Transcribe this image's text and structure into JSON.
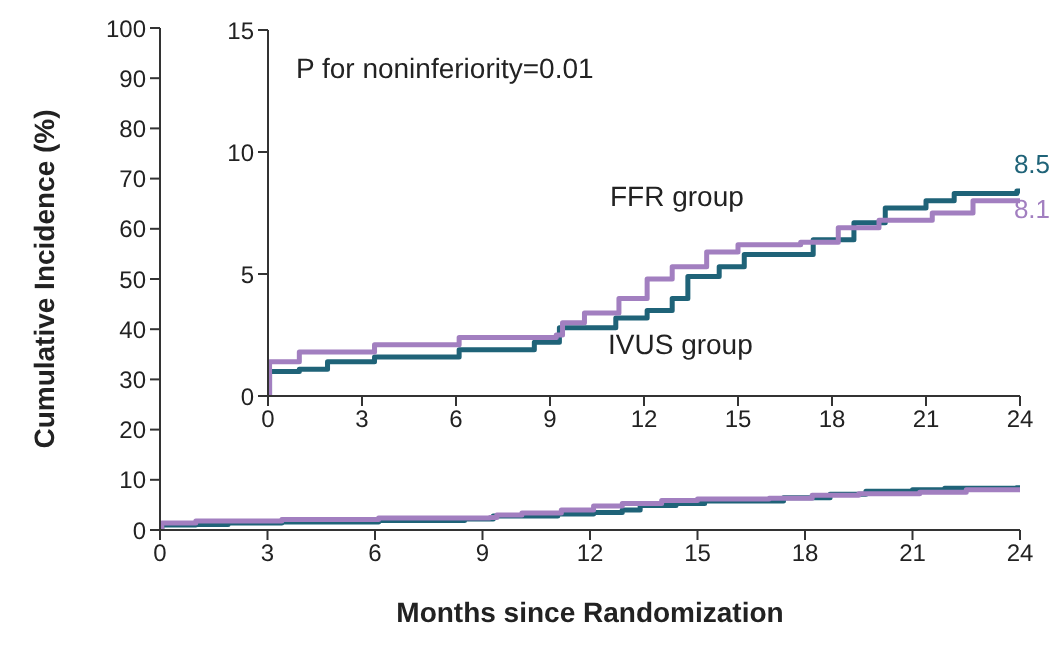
{
  "chart_data": [
    {
      "type": "step",
      "xlabel": "Months since Randomization",
      "ylabel": "Cumulative Incidence (%)",
      "xlim": [
        0,
        24
      ],
      "xticks": [
        0,
        3,
        6,
        9,
        12,
        15,
        18,
        21,
        24
      ],
      "ylim": [
        0,
        100
      ],
      "yticks": [
        0,
        10,
        20,
        30,
        40,
        50,
        60,
        70,
        80,
        90,
        100
      ],
      "series": [
        {
          "color": "#1f6378",
          "x": [
            0,
            0.05,
            1,
            1.9,
            3.4,
            6.1,
            8.5,
            9.3,
            11.1,
            12.1,
            12.9,
            13.4,
            14.4,
            15.2,
            16.6,
            17.4,
            18.7,
            19.7,
            21,
            21.9,
            23.9,
            24
          ],
          "values": [
            0,
            1.0,
            1.1,
            1.4,
            1.6,
            1.9,
            2.2,
            2.8,
            3.2,
            3.5,
            4.0,
            4.9,
            5.3,
            5.8,
            5.8,
            6.4,
            7.1,
            7.7,
            8.0,
            8.3,
            8.4,
            8.5
          ]
        },
        {
          "color": "#a27fc0",
          "x": [
            0,
            0.05,
            1,
            3.4,
            6.1,
            9.2,
            9.4,
            10.1,
            11.2,
            12.1,
            12.9,
            14,
            15,
            17,
            18.2,
            19.5,
            21.2,
            22.5,
            24
          ],
          "values": [
            0,
            1.4,
            1.8,
            2.1,
            2.4,
            2.5,
            3.0,
            3.4,
            4.0,
            4.8,
            5.3,
            5.9,
            6.2,
            6.3,
            6.9,
            7.2,
            7.5,
            8.0,
            8.1
          ]
        }
      ]
    },
    {
      "type": "step",
      "annotations": [
        "P for noninferiority=0.01"
      ],
      "xlim": [
        0,
        24
      ],
      "xticks": [
        0,
        3,
        6,
        9,
        12,
        15,
        18,
        21,
        24
      ],
      "ylim": [
        0,
        15
      ],
      "yticks": [
        0,
        5,
        10,
        15
      ],
      "series": [
        {
          "name": "IVUS group",
          "color": "#1f6378",
          "x": [
            0,
            0.05,
            1,
            1.9,
            3.4,
            6.1,
            8.5,
            9.3,
            11.1,
            12.1,
            12.9,
            13.4,
            14.4,
            15.2,
            16.6,
            17.4,
            18.7,
            19.7,
            21,
            21.9,
            23.9,
            24
          ],
          "values": [
            0,
            1.0,
            1.1,
            1.4,
            1.6,
            1.9,
            2.2,
            2.8,
            3.2,
            3.5,
            4.0,
            4.9,
            5.3,
            5.8,
            5.8,
            6.4,
            7.1,
            7.7,
            8.0,
            8.3,
            8.4,
            8.5
          ],
          "value_labels": [
            null,
            null,
            null,
            null,
            null,
            null,
            null,
            null,
            null,
            null,
            null,
            null,
            null,
            null,
            null,
            null,
            null,
            null,
            null,
            null,
            null,
            "8.5"
          ]
        },
        {
          "name": "FFR group",
          "color": "#a27fc0",
          "x": [
            0,
            0.05,
            1,
            3.4,
            6.1,
            9.2,
            9.4,
            10.1,
            11.2,
            12.1,
            12.9,
            14,
            15,
            17,
            18.2,
            19.5,
            21.2,
            22.5,
            24
          ],
          "values": [
            0,
            1.4,
            1.8,
            2.1,
            2.4,
            2.5,
            3.0,
            3.4,
            4.0,
            4.8,
            5.3,
            5.9,
            6.2,
            6.3,
            6.9,
            7.2,
            7.5,
            8.0,
            8.1
          ],
          "value_labels": [
            null,
            null,
            null,
            null,
            null,
            null,
            null,
            null,
            null,
            null,
            null,
            null,
            null,
            null,
            null,
            null,
            null,
            null,
            "8.1"
          ]
        }
      ]
    }
  ]
}
